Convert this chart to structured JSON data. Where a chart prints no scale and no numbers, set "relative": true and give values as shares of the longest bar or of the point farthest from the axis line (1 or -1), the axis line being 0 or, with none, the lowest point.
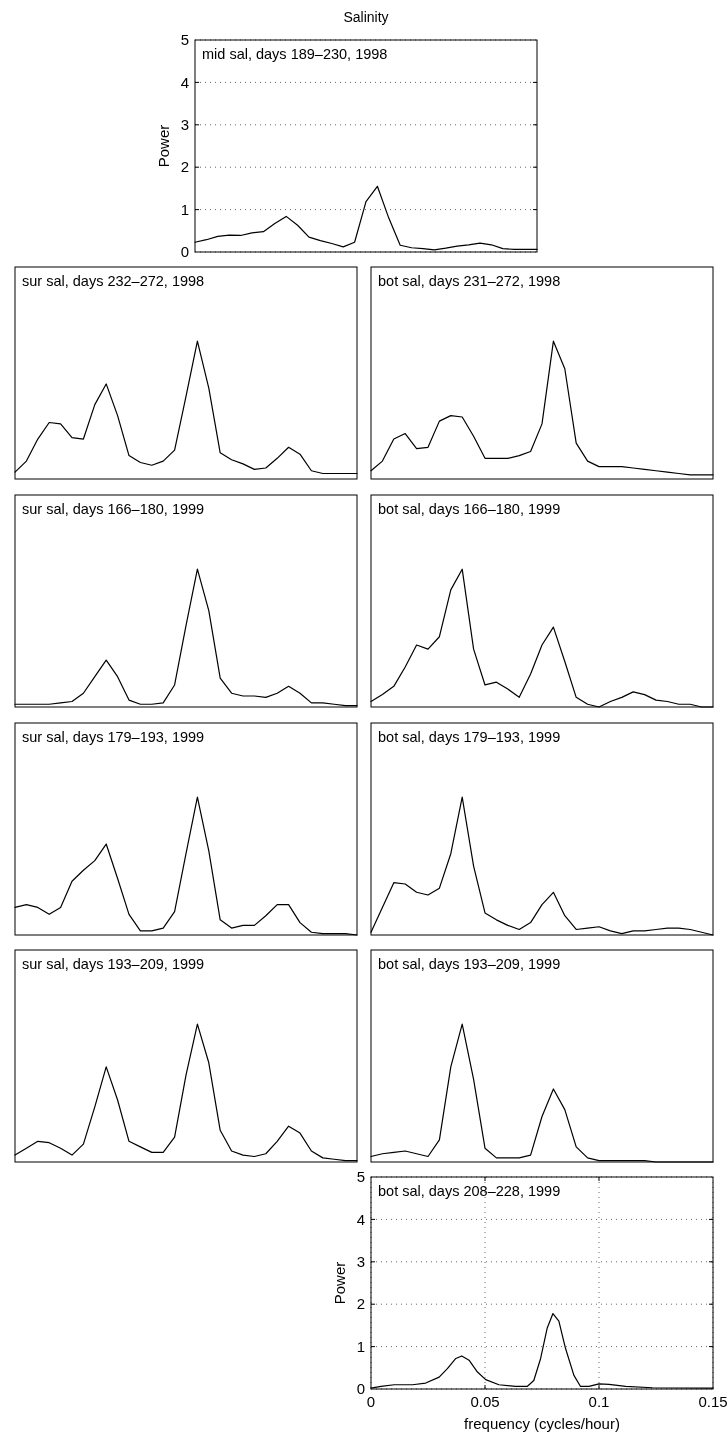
{
  "chart_data": [
    {
      "type": "line",
      "title": "Salinity",
      "ylabel": "Power",
      "annotations": [
        "mid sal, days 189–230, 1998"
      ],
      "ylim": [
        0,
        5
      ],
      "yticks": [
        0,
        1,
        2,
        3,
        4,
        5
      ],
      "grid": "y",
      "tick_labels": "y",
      "categories": [
        null,
        null,
        null,
        null,
        null,
        null,
        null,
        null,
        null,
        null,
        null,
        null,
        null,
        null,
        null,
        null,
        null,
        null,
        null,
        null,
        null,
        null,
        null,
        null,
        null,
        null,
        null,
        null,
        null,
        null,
        null
      ],
      "series": [
        {
          "color": "#000000",
          "values": [
            0.23,
            0.29,
            0.37,
            0.4,
            0.39,
            0.45,
            0.48,
            0.67,
            0.84,
            0.63,
            0.35,
            0.27,
            0.2,
            0.12,
            0.23,
            1.19,
            1.55,
            0.8,
            0.16,
            0.1,
            0.08,
            0.05,
            0.09,
            0.14,
            0.17,
            0.21,
            0.17,
            0.08,
            0.06,
            0.06,
            0.06
          ]
        }
      ]
    },
    {
      "type": "line",
      "relative": true,
      "annotations": [
        "sur sal, days 232–272, 1998"
      ],
      "tick_labels": false,
      "categories": [
        null,
        null,
        null,
        null,
        null,
        null,
        null,
        null,
        null,
        null,
        null,
        null,
        null,
        null,
        null,
        null,
        null,
        null,
        null,
        null,
        null,
        null,
        null,
        null,
        null,
        null,
        null,
        null,
        null,
        null,
        null
      ],
      "series": [
        {
          "color": "#000000",
          "values": [
            0.05,
            0.13,
            0.29,
            0.41,
            0.4,
            0.3,
            0.29,
            0.54,
            0.69,
            0.46,
            0.17,
            0.12,
            0.1,
            0.13,
            0.21,
            0.6,
            1,
            0.66,
            0.19,
            0.14,
            0.11,
            0.07,
            0.08,
            0.15,
            0.23,
            0.18,
            0.06,
            0.04,
            0.04,
            0.04,
            0.04
          ]
        }
      ]
    },
    {
      "type": "line",
      "relative": true,
      "annotations": [
        "bot sal, days 231–272, 1998"
      ],
      "tick_labels": false,
      "categories": [
        null,
        null,
        null,
        null,
        null,
        null,
        null,
        null,
        null,
        null,
        null,
        null,
        null,
        null,
        null,
        null,
        null,
        null,
        null,
        null,
        null,
        null,
        null,
        null,
        null,
        null,
        null,
        null,
        null,
        null,
        null
      ],
      "series": [
        {
          "color": "#000000",
          "values": [
            0.06,
            0.13,
            0.29,
            0.33,
            0.22,
            0.23,
            0.42,
            0.46,
            0.45,
            0.31,
            0.15,
            0.15,
            0.15,
            0.17,
            0.2,
            0.4,
            1,
            0.8,
            0.26,
            0.13,
            0.09,
            0.09,
            0.09,
            0.08,
            0.07,
            0.06,
            0.05,
            0.04,
            0.03,
            0.03,
            0.03
          ]
        }
      ]
    },
    {
      "type": "line",
      "relative": true,
      "annotations": [
        "sur sal, days 166–180, 1999"
      ],
      "tick_labels": false,
      "categories": [
        null,
        null,
        null,
        null,
        null,
        null,
        null,
        null,
        null,
        null,
        null,
        null,
        null,
        null,
        null,
        null,
        null,
        null,
        null,
        null,
        null,
        null,
        null,
        null,
        null,
        null,
        null,
        null,
        null,
        null,
        null
      ],
      "series": [
        {
          "color": "#000000",
          "values": [
            0.02,
            0.02,
            0.02,
            0.02,
            0.03,
            0.04,
            0.1,
            0.22,
            0.34,
            0.22,
            0.05,
            0.02,
            0.02,
            0.03,
            0.16,
            0.59,
            1,
            0.7,
            0.21,
            0.1,
            0.08,
            0.08,
            0.07,
            0.1,
            0.15,
            0.1,
            0.03,
            0.03,
            0.02,
            0.01,
            0.01
          ]
        }
      ]
    },
    {
      "type": "line",
      "relative": true,
      "annotations": [
        "bot sal, days 166–180, 1999"
      ],
      "tick_labels": false,
      "categories": [
        null,
        null,
        null,
        null,
        null,
        null,
        null,
        null,
        null,
        null,
        null,
        null,
        null,
        null,
        null,
        null,
        null,
        null,
        null,
        null,
        null,
        null,
        null,
        null,
        null,
        null,
        null,
        null,
        null,
        null,
        null
      ],
      "series": [
        {
          "color": "#000000",
          "values": [
            0.04,
            0.09,
            0.15,
            0.29,
            0.45,
            0.42,
            0.51,
            0.85,
            1,
            0.42,
            0.16,
            0.18,
            0.13,
            0.07,
            0.24,
            0.45,
            0.58,
            0.33,
            0.07,
            0.02,
            0,
            0.04,
            0.07,
            0.11,
            0.09,
            0.05,
            0.04,
            0.02,
            0.02,
            0,
            0
          ]
        }
      ]
    },
    {
      "type": "line",
      "relative": true,
      "annotations": [
        "sur sal, days 179–193, 1999"
      ],
      "tick_labels": false,
      "categories": [
        null,
        null,
        null,
        null,
        null,
        null,
        null,
        null,
        null,
        null,
        null,
        null,
        null,
        null,
        null,
        null,
        null,
        null,
        null,
        null,
        null,
        null,
        null,
        null,
        null,
        null,
        null,
        null,
        null,
        null,
        null
      ],
      "series": [
        {
          "color": "#000000",
          "values": [
            0.2,
            0.22,
            0.2,
            0.15,
            0.2,
            0.39,
            0.47,
            0.54,
            0.66,
            0.41,
            0.15,
            0.03,
            0.03,
            0.05,
            0.17,
            0.59,
            1,
            0.61,
            0.11,
            0.05,
            0.07,
            0.07,
            0.14,
            0.22,
            0.22,
            0.09,
            0.02,
            0.01,
            0.01,
            0.01,
            0
          ]
        }
      ]
    },
    {
      "type": "line",
      "relative": true,
      "annotations": [
        "bot sal, days 179–193, 1999"
      ],
      "tick_labels": false,
      "categories": [
        null,
        null,
        null,
        null,
        null,
        null,
        null,
        null,
        null,
        null,
        null,
        null,
        null,
        null,
        null,
        null,
        null,
        null,
        null,
        null,
        null,
        null,
        null,
        null,
        null,
        null,
        null,
        null,
        null,
        null,
        null
      ],
      "series": [
        {
          "color": "#000000",
          "values": [
            0.02,
            0.2,
            0.38,
            0.37,
            0.31,
            0.29,
            0.34,
            0.59,
            1,
            0.5,
            0.16,
            0.11,
            0.07,
            0.04,
            0.09,
            0.22,
            0.31,
            0.14,
            0.04,
            0.05,
            0.06,
            0.03,
            0.01,
            0.03,
            0.03,
            0.04,
            0.05,
            0.05,
            0.04,
            0.02,
            0
          ]
        }
      ]
    },
    {
      "type": "line",
      "relative": true,
      "annotations": [
        "sur sal, days 193–209, 1999"
      ],
      "tick_labels": false,
      "categories": [
        null,
        null,
        null,
        null,
        null,
        null,
        null,
        null,
        null,
        null,
        null,
        null,
        null,
        null,
        null,
        null,
        null,
        null,
        null,
        null,
        null,
        null,
        null,
        null,
        null,
        null,
        null,
        null,
        null,
        null,
        null
      ],
      "series": [
        {
          "color": "#000000",
          "values": [
            0.05,
            0.1,
            0.15,
            0.14,
            0.1,
            0.05,
            0.13,
            0.4,
            0.69,
            0.45,
            0.15,
            0.11,
            0.07,
            0.07,
            0.18,
            0.63,
            1,
            0.72,
            0.23,
            0.08,
            0.05,
            0.04,
            0.06,
            0.15,
            0.26,
            0.21,
            0.08,
            0.03,
            0.02,
            0.01,
            0.01
          ]
        }
      ]
    },
    {
      "type": "line",
      "relative": true,
      "annotations": [
        "bot sal, days 193–209, 1999"
      ],
      "tick_labels": false,
      "categories": [
        null,
        null,
        null,
        null,
        null,
        null,
        null,
        null,
        null,
        null,
        null,
        null,
        null,
        null,
        null,
        null,
        null,
        null,
        null,
        null,
        null,
        null,
        null,
        null,
        null,
        null,
        null,
        null,
        null,
        null,
        null
      ],
      "series": [
        {
          "color": "#000000",
          "values": [
            0.04,
            0.06,
            0.07,
            0.08,
            0.06,
            0.04,
            0.16,
            0.69,
            1,
            0.6,
            0.1,
            0.03,
            0.03,
            0.03,
            0.05,
            0.33,
            0.53,
            0.38,
            0.11,
            0.03,
            0.01,
            0.01,
            0.01,
            0.01,
            0.01,
            0,
            0,
            0,
            0,
            0,
            0
          ]
        }
      ]
    },
    {
      "type": "line",
      "ylabel": "Power",
      "xlabel": "frequency (cycles/hour)",
      "annotations": [
        "bot sal, days 208–228, 1999"
      ],
      "xlim": [
        0,
        0.15
      ],
      "ylim": [
        0,
        5
      ],
      "xticks": [
        0,
        0.05,
        0.1,
        0.15
      ],
      "yticks": [
        0,
        1,
        2,
        3,
        4,
        5
      ],
      "grid": true,
      "series": [
        {
          "color": "#000000",
          "x": [
            0,
            0.0044,
            0.0102,
            0.0182,
            0.024,
            0.0299,
            0.0335,
            0.0372,
            0.0398,
            0.043,
            0.0467,
            0.0503,
            0.0561,
            0.0634,
            0.0685,
            0.0714,
            0.0744,
            0.0773,
            0.0798,
            0.0824,
            0.0853,
            0.089,
            0.0919,
            0.0956,
            0.1,
            0.1044,
            0.1117,
            0.1234,
            0.15
          ],
          "values": [
            0.02,
            0.06,
            0.1,
            0.1,
            0.14,
            0.28,
            0.48,
            0.72,
            0.78,
            0.68,
            0.4,
            0.22,
            0.1,
            0.06,
            0.06,
            0.2,
            0.72,
            1.44,
            1.78,
            1.6,
            0.96,
            0.32,
            0.06,
            0.06,
            0.12,
            0.11,
            0.06,
            0.03,
            0.02
          ]
        }
      ]
    }
  ]
}
